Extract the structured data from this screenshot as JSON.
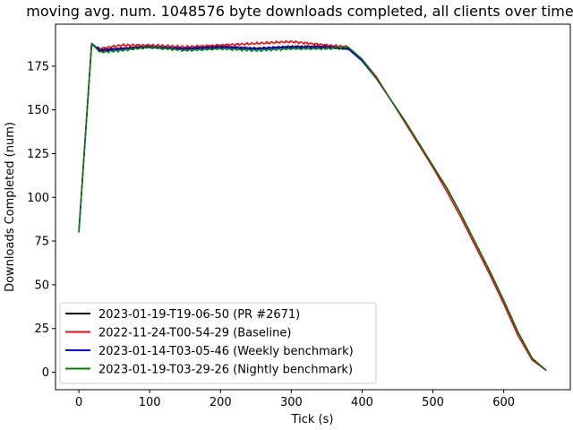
{
  "chart_data": {
    "type": "line",
    "title": "moving avg. num. 1048576 byte downloads completed, all clients over time",
    "xlabel": "Tick (s)",
    "ylabel": "Downloads Completed (num)",
    "xlim": [
      -33,
      694
    ],
    "ylim": [
      -10,
      199
    ],
    "xticks": [
      0,
      100,
      200,
      300,
      400,
      500,
      600
    ],
    "yticks": [
      0,
      25,
      50,
      75,
      100,
      125,
      150,
      175
    ],
    "grid": false,
    "legend_position": "lower-left",
    "series": [
      {
        "name": "2023-01-19-T19-06-50 (PR #2671)",
        "color": "#000000",
        "x": [
          0,
          18,
          30,
          60,
          100,
          150,
          200,
          250,
          300,
          350,
          380,
          400,
          420,
          440,
          460,
          480,
          500,
          520,
          540,
          560,
          580,
          600,
          620,
          640,
          660
        ],
        "y": [
          80,
          188,
          184,
          185,
          186,
          185,
          186,
          185,
          186,
          186,
          185,
          178,
          168,
          156,
          144,
          131,
          118,
          105,
          90,
          74,
          58,
          41,
          23,
          8,
          1
        ]
      },
      {
        "name": "2022-11-24-T00-54-29 (Baseline)",
        "color": "#ff0000",
        "x": [
          0,
          18,
          30,
          60,
          100,
          150,
          200,
          250,
          300,
          350,
          380,
          400,
          420,
          440,
          460,
          480,
          500,
          520,
          540,
          560,
          580,
          600,
          620,
          640,
          660
        ],
        "y": [
          81,
          187,
          185,
          187,
          187,
          186,
          187,
          188,
          189,
          187,
          186,
          179,
          169,
          156,
          143,
          130,
          117,
          103,
          88,
          72,
          56,
          39,
          21,
          7,
          1
        ]
      },
      {
        "name": "2023-01-14-T03-05-46 (Weekly benchmark)",
        "color": "#0000ff",
        "x": [
          0,
          18,
          30,
          60,
          100,
          150,
          200,
          250,
          300,
          350,
          380,
          400,
          420,
          440,
          460,
          480,
          500,
          520,
          540,
          560,
          580,
          600,
          620,
          640,
          660
        ],
        "y": [
          80,
          188,
          184,
          185,
          186,
          185,
          186,
          185,
          186,
          186,
          185,
          178,
          168,
          156,
          144,
          131,
          118,
          105,
          90,
          74,
          58,
          41,
          23,
          8,
          1
        ]
      },
      {
        "name": "2023-01-19-T03-29-26 (Nightly benchmark)",
        "color": "#008000",
        "x": [
          0,
          18,
          30,
          60,
          100,
          150,
          200,
          250,
          300,
          350,
          380,
          400,
          420,
          440,
          460,
          480,
          500,
          520,
          540,
          560,
          580,
          600,
          620,
          640,
          660
        ],
        "y": [
          80,
          188,
          183,
          184,
          186,
          184,
          185,
          184,
          185,
          185,
          186,
          179,
          168,
          156,
          144,
          131,
          118,
          105,
          90,
          74,
          58,
          41,
          23,
          8,
          1
        ]
      }
    ]
  }
}
